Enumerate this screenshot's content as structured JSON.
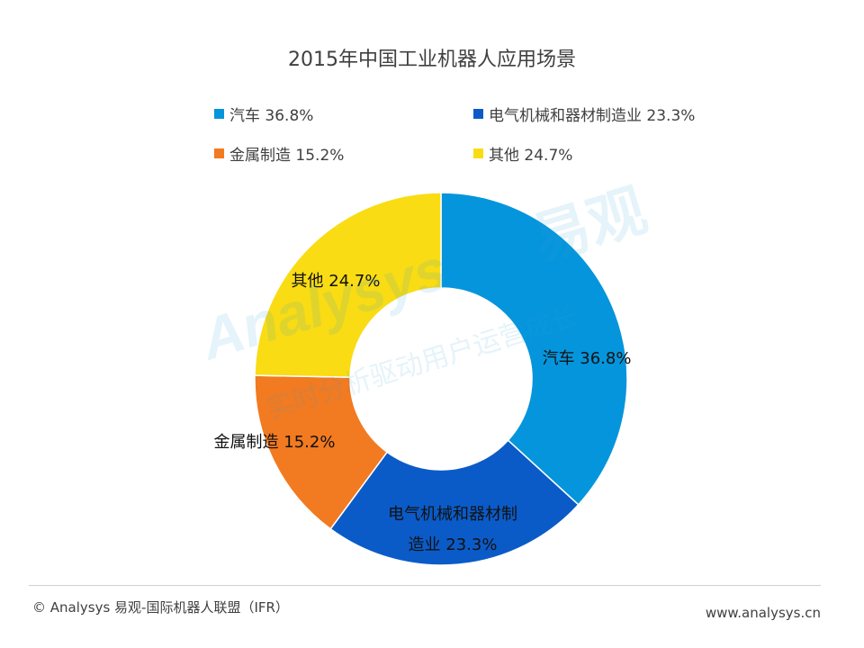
{
  "chart_data": {
    "type": "pie",
    "subtype": "donut",
    "title": "2015年中国工业机器人应用场景",
    "slices": [
      {
        "label": "汽车",
        "value": 36.8,
        "value_label": "36.8%",
        "color": "#0595DC"
      },
      {
        "label": "电气机械和器材制造业",
        "value": 23.3,
        "value_label": "23.3%",
        "color": "#0A5BC8",
        "label_lines": [
          "电气机械和器材制",
          "造业 23.3%"
        ]
      },
      {
        "label": "金属制造",
        "value": 15.2,
        "value_label": "15.2%",
        "color": "#F27A20"
      },
      {
        "label": "其他",
        "value": 24.7,
        "value_label": "24.7%",
        "color": "#F9DC14"
      }
    ],
    "legend_placement": "top",
    "legend": [
      "汽车 36.8%",
      "电气机械和器材制造业 23.3%",
      "金属制造 15.2%",
      "其他 24.7%"
    ]
  },
  "footer": {
    "source": "© Analysys 易观-国际机器人联盟（IFR）",
    "website": "www.analysys.cn"
  },
  "watermark": {
    "brand": "Analysys",
    "brand_cn": "易观",
    "slogan": "实时分析驱动用户运营成长"
  }
}
